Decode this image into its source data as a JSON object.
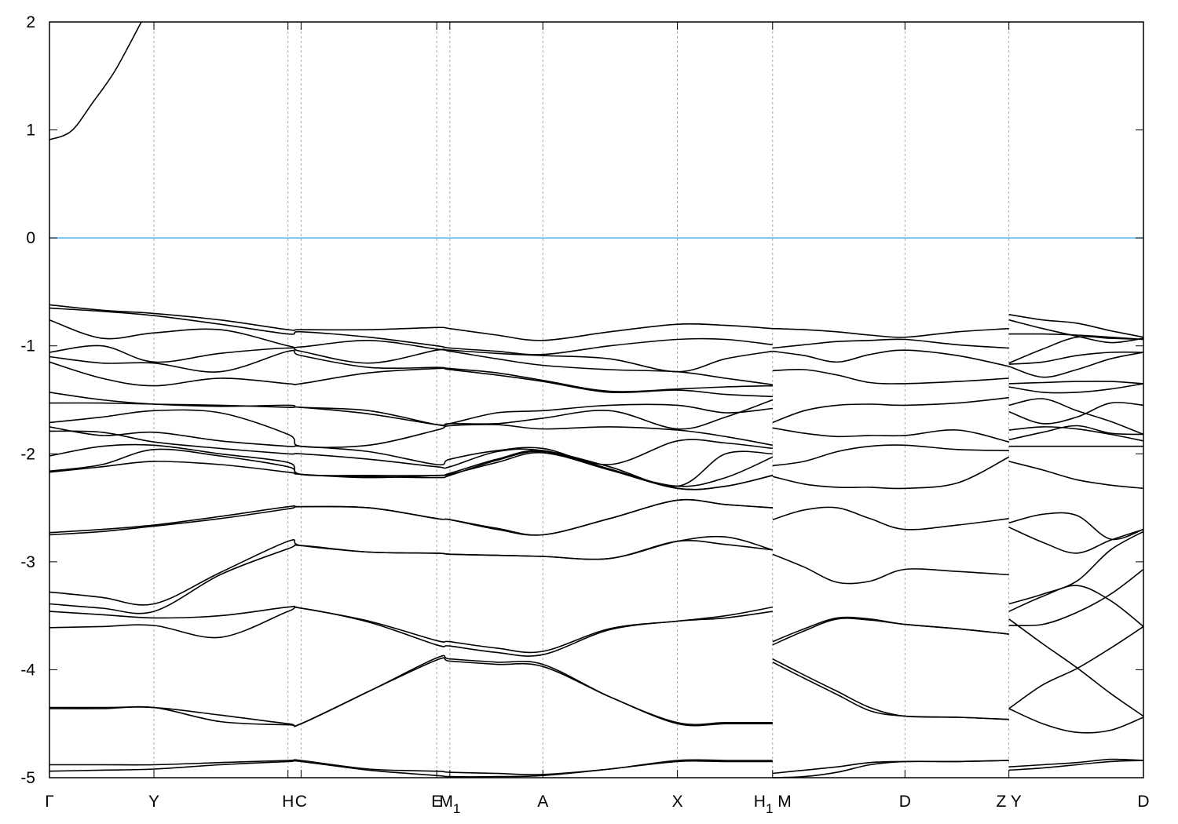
{
  "chart_data": {
    "type": "line",
    "title": "",
    "xlabel": "",
    "ylabel": "",
    "ylim": [
      -5,
      2
    ],
    "xlim": [
      0,
      10.0
    ],
    "yticks": [
      2,
      1,
      0,
      -1,
      -2,
      -3,
      -4,
      -5
    ],
    "grid": "vertical dashed lines at high-symmetry points",
    "legend": "none",
    "fermi_level": {
      "value": 0,
      "color": "#56b4e9"
    },
    "band_color": "#000000",
    "xticks": [
      {
        "k": 0,
        "label": "Γ"
      },
      {
        "k": 0.955,
        "label": "Y"
      },
      {
        "k": 2.18,
        "label": "H"
      },
      {
        "k": 2.3,
        "label": "C"
      },
      {
        "k": 3.54,
        "label": "E"
      },
      {
        "k": 3.66,
        "label": "M_1"
      },
      {
        "k": 4.51,
        "label": "A"
      },
      {
        "k": 5.74,
        "label": "X"
      },
      {
        "k": 6.61,
        "label": "H_1 M"
      },
      {
        "k": 7.82,
        "label": "D"
      },
      {
        "k": 8.77,
        "label": "Z Y"
      },
      {
        "k": 10.0,
        "label": "D"
      }
    ],
    "sections": [
      {
        "k": [
          0,
          0.2,
          0.4,
          0.6,
          0.84
        ],
        "bands": [
          [
            0.91,
            0.99,
            1.26,
            1.55,
            2.0
          ]
        ]
      },
      {
        "k": [
          0,
          0.48,
          0.955,
          1.56,
          2.18,
          2.3,
          2.92,
          3.54,
          3.66,
          4.09,
          4.51,
          5.12,
          5.74,
          6.18,
          6.61
        ],
        "bands": [
          [
            -0.62,
            -0.67,
            -0.7,
            -0.76,
            -0.85,
            -0.85,
            -0.85,
            -0.83,
            -0.84,
            -0.9,
            -0.95,
            -0.87,
            -0.8,
            -0.81,
            -0.84
          ],
          [
            -0.65,
            -0.68,
            -0.72,
            -0.8,
            -0.89,
            -0.87,
            -0.92,
            -1.0,
            -1.02,
            -1.05,
            -1.08,
            -1.0,
            -0.94,
            -0.94,
            -0.99
          ],
          [
            -0.76,
            -0.93,
            -0.88,
            -0.85,
            -1.0,
            -1.01,
            -0.95,
            -1.03,
            -1.04,
            -1.07,
            -1.09,
            -1.12,
            -1.24,
            -1.12,
            -1.05
          ],
          [
            -1.06,
            -1.0,
            -1.15,
            -1.07,
            -1.02,
            -1.05,
            -1.16,
            -1.04,
            -1.05,
            -1.12,
            -1.18,
            -1.22,
            -1.24,
            -1.3,
            -1.36
          ],
          [
            -1.1,
            -1.16,
            -1.16,
            -1.24,
            -1.05,
            -1.09,
            -1.2,
            -1.2,
            -1.21,
            -1.25,
            -1.32,
            -1.42,
            -1.4,
            -1.38,
            -1.37
          ],
          [
            -1.15,
            -1.3,
            -1.37,
            -1.3,
            -1.35,
            -1.35,
            -1.25,
            -1.21,
            -1.22,
            -1.27,
            -1.33,
            -1.43,
            -1.41,
            -1.45,
            -1.47
          ],
          [
            -1.43,
            -1.5,
            -1.54,
            -1.56,
            -1.55,
            -1.57,
            -1.6,
            -1.73,
            -1.72,
            -1.62,
            -1.6,
            -1.55,
            -1.55,
            -1.62,
            -1.58
          ],
          [
            -1.53,
            -1.53,
            -1.54,
            -1.55,
            -1.57,
            -1.57,
            -1.63,
            -1.73,
            -1.72,
            -1.72,
            -1.67,
            -1.6,
            -1.77,
            -1.66,
            -1.5
          ],
          [
            -1.71,
            -1.66,
            -1.6,
            -1.62,
            -1.82,
            -1.93,
            -1.92,
            -1.78,
            -1.74,
            -1.73,
            -1.77,
            -1.75,
            -1.78,
            -1.84,
            -1.92
          ],
          [
            -1.75,
            -1.83,
            -1.8,
            -1.88,
            -1.93,
            -1.93,
            -1.98,
            -2.1,
            -2.05,
            -1.97,
            -1.95,
            -2.1,
            -1.88,
            -1.9,
            -1.95
          ],
          [
            -1.79,
            -1.8,
            -1.89,
            -1.95,
            -2.0,
            -2.0,
            -2.05,
            -2.12,
            -2.12,
            -1.98,
            -1.97,
            -2.12,
            -2.3,
            -2.0,
            -2.0
          ],
          [
            -2.02,
            -1.93,
            -1.92,
            -2.0,
            -2.08,
            -2.19,
            -2.2,
            -2.2,
            -2.18,
            -2.05,
            -1.97,
            -2.15,
            -2.3,
            -2.22,
            -2.03
          ],
          [
            -2.16,
            -2.1,
            -1.96,
            -2.02,
            -2.12,
            -2.19,
            -2.21,
            -2.22,
            -2.2,
            -2.06,
            -1.98,
            -2.14,
            -2.32,
            -2.3,
            -2.2
          ],
          [
            -2.17,
            -2.12,
            -2.07,
            -2.1,
            -2.17,
            -2.19,
            -2.22,
            -2.2,
            -2.19,
            -2.08,
            -1.99,
            -2.15,
            -2.32,
            -2.3,
            -2.2
          ],
          [
            -2.73,
            -2.7,
            -2.66,
            -2.58,
            -2.49,
            -2.49,
            -2.5,
            -2.6,
            -2.61,
            -2.7,
            -2.75,
            -2.6,
            -2.43,
            -2.47,
            -2.5
          ],
          [
            -2.75,
            -2.72,
            -2.67,
            -2.6,
            -2.51,
            -2.49,
            -2.5,
            -2.6,
            -2.61,
            -2.69,
            -2.75,
            -2.6,
            -2.43,
            -2.47,
            -2.5
          ],
          [
            -3.28,
            -3.33,
            -3.39,
            -3.1,
            -2.81,
            -2.85,
            -2.91,
            -2.92,
            -2.93,
            -2.94,
            -2.95,
            -2.97,
            -2.81,
            -2.77,
            -2.89
          ],
          [
            -3.39,
            -3.43,
            -3.46,
            -3.12,
            -2.88,
            -2.85,
            -2.91,
            -2.92,
            -2.93,
            -2.94,
            -2.95,
            -2.97,
            -2.81,
            -2.84,
            -2.89
          ],
          [
            -3.46,
            -3.49,
            -3.52,
            -3.5,
            -3.42,
            -3.43,
            -3.55,
            -3.73,
            -3.74,
            -3.8,
            -3.83,
            -3.62,
            -3.55,
            -3.5,
            -3.42
          ],
          [
            -3.61,
            -3.6,
            -3.59,
            -3.7,
            -3.46,
            -3.43,
            -3.56,
            -3.77,
            -3.78,
            -3.84,
            -3.86,
            -3.63,
            -3.55,
            -3.52,
            -3.46
          ],
          [
            -4.35,
            -4.35,
            -4.35,
            -4.42,
            -4.5,
            -4.5,
            -4.2,
            -3.89,
            -3.9,
            -3.93,
            -3.95,
            -4.25,
            -4.49,
            -4.49,
            -4.49
          ],
          [
            -4.36,
            -4.36,
            -4.35,
            -4.48,
            -4.51,
            -4.5,
            -4.2,
            -3.91,
            -3.92,
            -3.95,
            -3.97,
            -4.25,
            -4.5,
            -4.5,
            -4.5
          ],
          [
            -4.88,
            -4.88,
            -4.88,
            -4.86,
            -4.84,
            -4.84,
            -4.92,
            -4.94,
            -4.95,
            -4.96,
            -4.97,
            -4.92,
            -4.84,
            -4.84,
            -4.84
          ],
          [
            -4.94,
            -4.93,
            -4.92,
            -4.88,
            -4.85,
            -4.85,
            -4.93,
            -4.98,
            -4.99,
            -4.99,
            -4.98,
            -4.92,
            -4.85,
            -4.85,
            -4.85
          ]
        ]
      },
      {
        "k": [
          6.61,
          6.9,
          7.2,
          7.5,
          7.82,
          8.3,
          8.77
        ],
        "bands": [
          [
            -0.84,
            -0.85,
            -0.87,
            -0.9,
            -0.92,
            -0.87,
            -0.84
          ],
          [
            -1.02,
            -0.99,
            -0.96,
            -0.95,
            -0.94,
            -0.99,
            -1.02
          ],
          [
            -1.05,
            -1.09,
            -1.15,
            -1.08,
            -1.04,
            -1.09,
            -1.19
          ],
          [
            -1.23,
            -1.22,
            -1.27,
            -1.34,
            -1.35,
            -1.33,
            -1.3
          ],
          [
            -1.71,
            -1.6,
            -1.55,
            -1.54,
            -1.55,
            -1.53,
            -1.48
          ],
          [
            -1.76,
            -1.81,
            -1.84,
            -1.83,
            -1.83,
            -1.78,
            -1.89
          ],
          [
            -2.11,
            -2.07,
            -1.98,
            -1.93,
            -1.92,
            -1.96,
            -1.97
          ],
          [
            -2.21,
            -2.28,
            -2.31,
            -2.31,
            -2.32,
            -2.27,
            -2.03
          ],
          [
            -2.61,
            -2.52,
            -2.5,
            -2.6,
            -2.7,
            -2.66,
            -2.6
          ],
          [
            -2.93,
            -3.05,
            -3.19,
            -3.18,
            -3.07,
            -3.09,
            -3.12
          ],
          [
            -3.74,
            -3.62,
            -3.52,
            -3.53,
            -3.58,
            -3.62,
            -3.67
          ],
          [
            -3.77,
            -3.64,
            -3.53,
            -3.54,
            -3.58,
            -3.62,
            -3.67
          ],
          [
            -3.9,
            -4.05,
            -4.2,
            -4.35,
            -4.43,
            -4.44,
            -4.46
          ],
          [
            -3.93,
            -4.08,
            -4.23,
            -4.38,
            -4.43,
            -4.44,
            -4.46
          ],
          [
            -4.96,
            -4.93,
            -4.9,
            -4.86,
            -4.85,
            -4.85,
            -4.84
          ],
          [
            -5.0,
            -4.99,
            -4.95,
            -4.88,
            -4.85,
            -4.85,
            -4.84
          ]
        ]
      },
      {
        "k": [
          8.77,
          9.08,
          9.39,
          9.7,
          10.0
        ],
        "bands": [
          [
            -0.71,
            -0.76,
            -0.79,
            -0.86,
            -0.92
          ],
          [
            -0.76,
            -0.84,
            -0.91,
            -0.97,
            -0.93
          ],
          [
            -0.89,
            -0.89,
            -0.9,
            -0.92,
            -0.94
          ],
          [
            -1.16,
            -1.03,
            -0.92,
            -0.93,
            -0.94
          ],
          [
            -1.17,
            -1.15,
            -1.09,
            -1.06,
            -1.06
          ],
          [
            -1.19,
            -1.29,
            -1.22,
            -1.12,
            -1.06
          ],
          [
            -1.35,
            -1.34,
            -1.33,
            -1.33,
            -1.35
          ],
          [
            -1.38,
            -1.43,
            -1.43,
            -1.4,
            -1.35
          ],
          [
            -1.55,
            -1.49,
            -1.6,
            -1.7,
            -1.82
          ],
          [
            -1.61,
            -1.72,
            -1.66,
            -1.53,
            -1.55
          ],
          [
            -1.78,
            -1.75,
            -1.77,
            -1.82,
            -1.88
          ],
          [
            -1.87,
            -1.8,
            -1.74,
            -1.81,
            -1.82
          ],
          [
            -1.93,
            -1.93,
            -1.93,
            -1.93,
            -1.93
          ],
          [
            -2.07,
            -2.15,
            -2.24,
            -2.29,
            -2.32
          ],
          [
            -2.64,
            -2.56,
            -2.57,
            -2.79,
            -2.7
          ],
          [
            -2.68,
            -2.82,
            -2.92,
            -2.8,
            -2.7
          ],
          [
            -3.39,
            -3.3,
            -3.18,
            -2.89,
            -2.72
          ],
          [
            -3.46,
            -3.32,
            -3.22,
            -3.36,
            -3.6
          ],
          [
            -3.59,
            -3.58,
            -3.47,
            -3.3,
            -3.07
          ],
          [
            -3.53,
            -3.76,
            -3.98,
            -4.22,
            -4.43
          ],
          [
            -4.36,
            -4.14,
            -3.99,
            -3.8,
            -3.6
          ],
          [
            -4.36,
            -4.5,
            -4.58,
            -4.56,
            -4.44
          ],
          [
            -4.9,
            -4.88,
            -4.86,
            -4.83,
            -4.84
          ],
          [
            -4.93,
            -4.91,
            -4.88,
            -4.85,
            -4.84
          ]
        ]
      }
    ]
  }
}
